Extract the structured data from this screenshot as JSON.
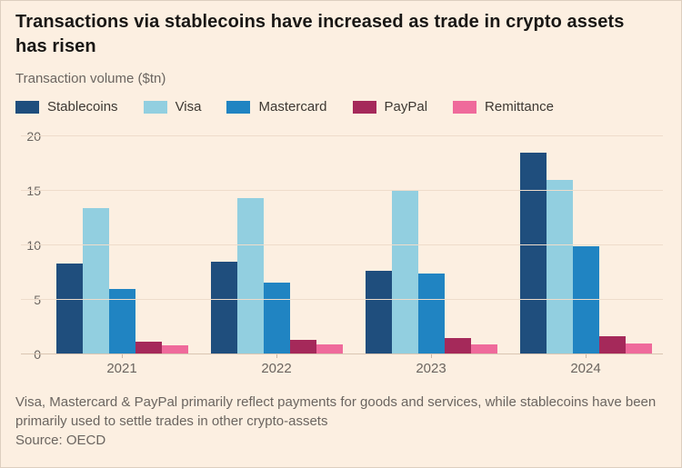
{
  "header": {
    "title_line1": "Transactions via stablecoins have increased as trade in crypto assets",
    "title_line2": "has risen",
    "subtitle": "Transaction volume ($tn)"
  },
  "legend": {
    "items": [
      {
        "label": "Stablecoins",
        "color": "#1f4e7d"
      },
      {
        "label": "Visa",
        "color": "#92cfe0"
      },
      {
        "label": "Mastercard",
        "color": "#2084c2"
      },
      {
        "label": "PayPal",
        "color": "#a5295a"
      },
      {
        "label": "Remittance",
        "color": "#ef6a9b"
      }
    ]
  },
  "chart_data": {
    "type": "bar",
    "title": "Transactions via stablecoins have increased as trade in crypto assets has risen",
    "ylabel": "Transaction volume ($tn)",
    "xlabel": "",
    "categories": [
      "2021",
      "2022",
      "2023",
      "2024"
    ],
    "series": [
      {
        "name": "Stablecoins",
        "color": "#1f4e7d",
        "values": [
          8.3,
          8.5,
          7.7,
          18.5
        ]
      },
      {
        "name": "Visa",
        "color": "#92cfe0",
        "values": [
          13.4,
          14.3,
          15.1,
          16.0
        ]
      },
      {
        "name": "Mastercard",
        "color": "#2084c2",
        "values": [
          6.0,
          6.6,
          7.4,
          9.9
        ]
      },
      {
        "name": "PayPal",
        "color": "#a5295a",
        "values": [
          1.2,
          1.3,
          1.5,
          1.7
        ]
      },
      {
        "name": "Remittance",
        "color": "#ef6a9b",
        "values": [
          0.8,
          0.9,
          0.9,
          1.0
        ]
      }
    ],
    "ylim": [
      0,
      20
    ],
    "yticks": [
      0,
      5,
      10,
      15,
      20
    ],
    "grid": true,
    "legend_position": "top"
  },
  "footer": {
    "note": "Visa, Mastercard & PayPal primarily reflect payments for goods and services, while stablecoins have been primarily used to settle trades in other crypto-assets",
    "note_line1": "Visa, Mastercard & PayPal primarily reflect payments for goods and services, while stablecoins have been",
    "note_line2": "primarily used to settle trades in other crypto-assets",
    "source": "Source: OECD"
  },
  "colors": {
    "background": "#fcefe1",
    "title_text": "#191715",
    "secondary_text": "#6b6560",
    "gridline": "#eedccb",
    "baseline": "#d9c5b2"
  }
}
